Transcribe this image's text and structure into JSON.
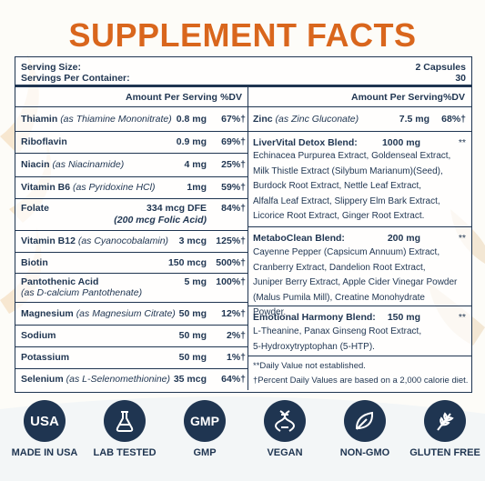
{
  "title": "SUPPLEMENT FACTS",
  "header": {
    "serving_size_label": "Serving Size:",
    "servings_per_container_label": "Servings Per Container:",
    "serving_size_value": "2 Capsules",
    "servings_per_container_value": "30"
  },
  "columns": {
    "amount": "Amount Per Serving",
    "dv": "%DV"
  },
  "left_nutrients": [
    {
      "name": "Thiamin",
      "source": "(as Thiamine Mononitrate)",
      "amount": "0.8 mg",
      "dv": "67%†"
    },
    {
      "name": "Riboflavin",
      "source": "",
      "amount": "0.9 mg",
      "dv": "69%†"
    },
    {
      "name": "Niacin",
      "source": "(as Niacinamide)",
      "amount": "4 mg",
      "dv": "25%†"
    },
    {
      "name": "Vitamin B6",
      "source": "(as Pyridoxine HCl)",
      "amount": "1mg",
      "dv": "59%†"
    },
    {
      "name": "Folate",
      "source": "",
      "amount": "334 mcg DFE",
      "amount2": "(200 mcg Folic Acid)",
      "dv": "84%†"
    },
    {
      "name": "Vitamin B12",
      "source": "(as Cyanocobalamin)",
      "amount": "3 mcg",
      "dv": "125%†"
    },
    {
      "name": "Biotin",
      "source": "",
      "amount": "150 mcg",
      "dv": "500%†"
    },
    {
      "name": "Pantothenic Acid",
      "source": "(as D-calcium Pantothenate)",
      "amount": "5 mg",
      "dv": "100%†"
    },
    {
      "name": "Magnesium",
      "source": "(as Magnesium Citrate)",
      "amount": "50 mg",
      "dv": "12%†"
    },
    {
      "name": "Sodium",
      "source": "",
      "amount": "50 mg",
      "dv": "2%†"
    },
    {
      "name": "Potassium",
      "source": "",
      "amount": "50 mg",
      "dv": "1%†"
    },
    {
      "name": "Selenium",
      "source": "(as L-Selenomethionine)",
      "amount": "35 mcg",
      "dv": "64%†"
    }
  ],
  "zinc": {
    "name": "Zinc",
    "source": "(as Zinc Gluconate)",
    "amount": "7.5 mg",
    "dv": "68%†"
  },
  "blends": [
    {
      "name": "LiverVital Detox Blend:",
      "amount": "1000 mg",
      "dv": "**",
      "lines": [
        "Echinacea Purpurea Extract, Goldenseal Extract,",
        "Milk Thistle Extract (Silybum Marianum)(Seed),",
        "Burdock Root Extract, Nettle Leaf Extract,",
        "Alfalfa Leaf Extract, Slippery Elm Bark Extract,",
        "Licorice Root Extract, Ginger Root Extract."
      ]
    },
    {
      "name": "MetaboClean Blend:",
      "amount": "200 mg",
      "dv": "**",
      "lines": [
        "Cayenne Pepper (Capsicum Annuum) Extract,",
        "Cranberry Extract, Dandelion Root Extract,",
        "Juniper Berry Extract, Apple Cider Vinegar Powder",
        "(Malus Pumila Mill), Creatine Monohydrate Powder."
      ]
    },
    {
      "name": "Emotional Harmony Blend:",
      "amount": "150 mg",
      "dv": "**",
      "lines": [
        "L-Theanine, Panax Ginseng Root Extract,",
        "5-Hydroxytryptophan (5-HTP)."
      ]
    }
  ],
  "footnotes": {
    "daily_value": "**Daily Value not established.",
    "percent_dv": "†Percent Daily Values are based on a 2,000 calorie diet."
  },
  "badges": [
    {
      "label": "MADE IN USA",
      "icon": "usa-icon",
      "text": "USA"
    },
    {
      "label": "LAB TESTED",
      "icon": "flask-icon"
    },
    {
      "label": "GMP",
      "icon": "gmp-icon",
      "text": "GMP"
    },
    {
      "label": "VEGAN",
      "icon": "dna-icon"
    },
    {
      "label": "NON-GMO",
      "icon": "leaf-icon"
    },
    {
      "label": "GLUTEN FREE",
      "icon": "wheat-icon"
    }
  ],
  "colors": {
    "title": "#d9661d",
    "text": "#1f3551",
    "background": "#fdfcf8"
  }
}
